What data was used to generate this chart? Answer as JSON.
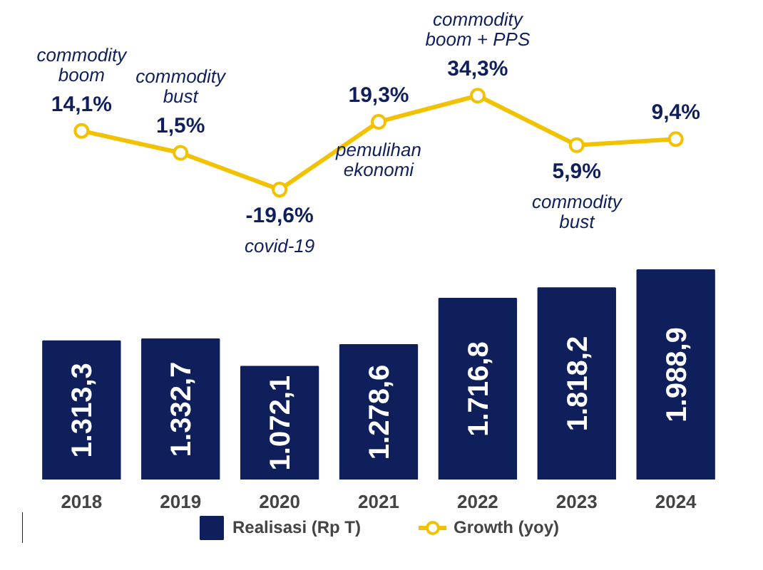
{
  "chart_data": [
    {
      "type": "line",
      "categories": [
        "2018",
        "2019",
        "2020",
        "2021",
        "2022",
        "2023",
        "2024"
      ],
      "tick_labels": false,
      "marker": "circle",
      "series": [
        {
          "name": "Growth (yoy)",
          "color": "#f2c200",
          "values": [
            14.1,
            1.5,
            -19.6,
            19.3,
            34.3,
            5.9,
            9.4
          ],
          "value_labels": [
            "14,1%",
            "1,5%",
            "-19,6%",
            "19,3%",
            "34,3%",
            "5,9%",
            "9,4%"
          ]
        }
      ],
      "annotations": [
        {
          "text": "commodity\nboom",
          "x": "2018",
          "y": 14.1
        },
        {
          "text": "commodity\nbust",
          "x": "2019",
          "y": 1.5
        },
        {
          "text": "covid-19",
          "x": "2020",
          "y": -19.6
        },
        {
          "text": "pemulihan\nekonomi",
          "x": "2021",
          "y": 19.3
        },
        {
          "text": "commodity\nboom + PPS",
          "x": "2022",
          "y": 34.3
        },
        {
          "text": "commodity\nbust",
          "x": "2023",
          "y": 5.9
        }
      ]
    },
    {
      "type": "bar",
      "categories": [
        "2018",
        "2019",
        "2020",
        "2021",
        "2022",
        "2023",
        "2024"
      ],
      "legend": "bottom",
      "series": [
        {
          "name": "Realisasi (Rp T)",
          "color": "#0f1f5c",
          "values": [
            1313.3,
            1332.7,
            1072.1,
            1278.6,
            1716.8,
            1818.2,
            1988.9
          ],
          "value_labels": [
            "1.313,3",
            "1.332,7",
            "1.072,1",
            "1.278,6",
            "1.716,8",
            "1.818,2",
            "1.988,9"
          ]
        }
      ]
    }
  ]
}
